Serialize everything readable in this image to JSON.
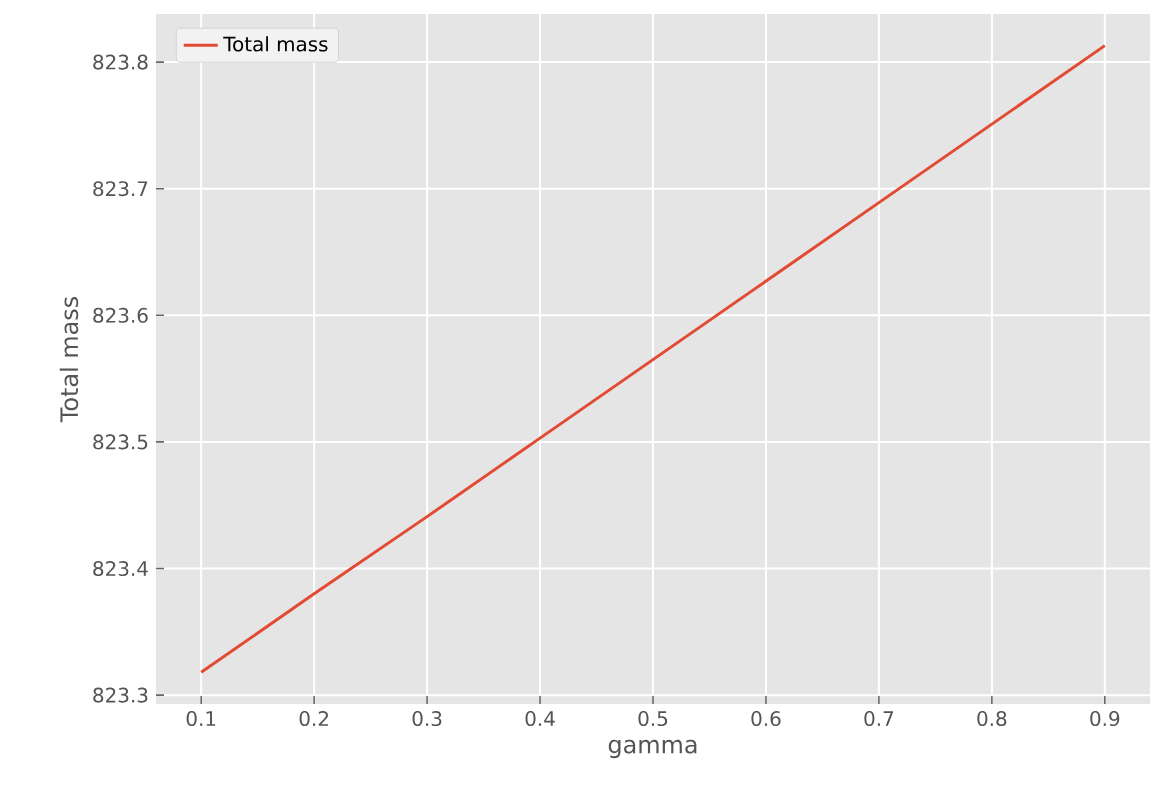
{
  "chart_data": {
    "type": "line",
    "xlabel": "gamma",
    "ylabel": "Total mass",
    "x": [
      0.1,
      0.2,
      0.3,
      0.4,
      0.5,
      0.6,
      0.7,
      0.8,
      0.9
    ],
    "series": [
      {
        "name": "Total mass",
        "color": "#e24a33",
        "values": [
          823.318,
          823.38,
          823.441,
          823.503,
          823.565,
          823.627,
          823.689,
          823.751,
          823.813
        ]
      }
    ],
    "xlim": [
      0.06,
      0.94
    ],
    "ylim": [
      823.293,
      823.838
    ],
    "xticks": [
      0.1,
      0.2,
      0.3,
      0.4,
      0.5,
      0.6,
      0.7,
      0.8,
      0.9
    ],
    "yticks": [
      823.3,
      823.4,
      823.5,
      823.6,
      823.7,
      823.8
    ],
    "grid": true,
    "legend": "top left",
    "marker": "none",
    "line_style": "solid"
  }
}
